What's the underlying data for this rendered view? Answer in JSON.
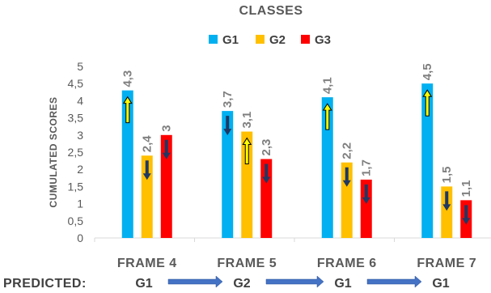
{
  "chart_data": {
    "type": "bar",
    "title": "CLASSES",
    "ylabel": "CUMULATED SCORES",
    "xlabel": "",
    "ylim": [
      0,
      5
    ],
    "yticks": [
      "0",
      "0,5",
      "1",
      "1,5",
      "2",
      "2,5",
      "3",
      "3,5",
      "4",
      "4,5",
      "5"
    ],
    "categories": [
      "FRAME 4",
      "FRAME 5",
      "FRAME 6",
      "FRAME 7"
    ],
    "legend_position": "top",
    "series": [
      {
        "name": "G1",
        "color": "#00b0f0",
        "values": [
          4.3,
          3.7,
          4.1,
          4.5
        ],
        "labels": [
          "4,3",
          "3,7",
          "4,1",
          "4,5"
        ],
        "trend": [
          "up",
          "down",
          "up",
          "up"
        ]
      },
      {
        "name": "G2",
        "color": "#ffc000",
        "values": [
          2.4,
          3.1,
          2.2,
          1.5
        ],
        "labels": [
          "2,4",
          "3,1",
          "2,2",
          "1,5"
        ],
        "trend": [
          "down",
          "up",
          "down",
          "down"
        ]
      },
      {
        "name": "G3",
        "color": "#ff0000",
        "values": [
          3.0,
          2.3,
          1.7,
          1.1
        ],
        "labels": [
          "3",
          "2,3",
          "1,7",
          "1,1"
        ],
        "trend": [
          "down",
          "down",
          "down",
          "down"
        ]
      }
    ],
    "predicted": {
      "label": "PREDICTED:",
      "classes": [
        "G1",
        "G2",
        "G1",
        "G1"
      ]
    },
    "colors": {
      "up_arrow_fill": "#ffff00",
      "up_arrow_stroke": "#000000",
      "down_arrow_fill": "#1f3864",
      "transition_arrow": "#4472c4",
      "axis": "#d9d9d9"
    }
  }
}
